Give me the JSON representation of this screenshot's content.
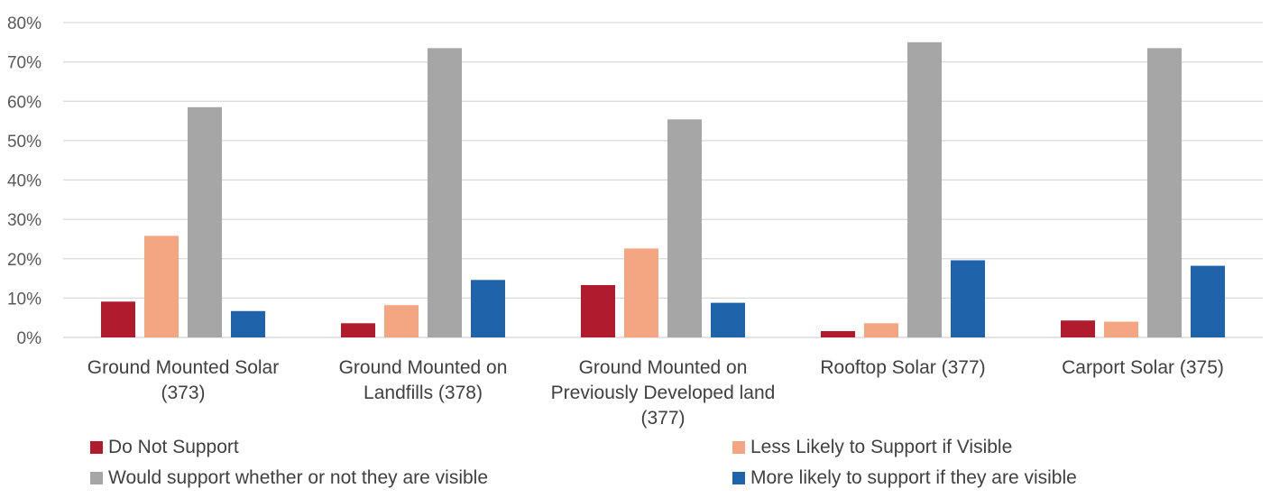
{
  "chart_data": {
    "type": "bar",
    "categories": [
      [
        "Ground Mounted Solar",
        "(373)"
      ],
      [
        "Ground Mounted on",
        "Landfills (378)"
      ],
      [
        "Ground Mounted on",
        "Previously Developed land",
        "(377)"
      ],
      [
        "Rooftop Solar (377)"
      ],
      [
        "Carport Solar (375)"
      ]
    ],
    "series": [
      {
        "name": "Do Not Support",
        "color": "#B01C2E",
        "values": [
          9.1,
          3.6,
          13.3,
          1.6,
          4.3
        ]
      },
      {
        "name": "Less Likely to Support if Visible",
        "color": "#F4A683",
        "values": [
          25.8,
          8.2,
          22.6,
          3.6,
          4.0
        ]
      },
      {
        "name": "Would support whether or not they are visible",
        "color": "#A6A6A6",
        "values": [
          58.5,
          73.5,
          55.4,
          75.0,
          73.5
        ]
      },
      {
        "name": "More likely to support if they are visible",
        "color": "#1F63AB",
        "values": [
          6.7,
          14.6,
          8.8,
          19.6,
          18.2
        ]
      }
    ],
    "yticks": [
      "0%",
      "10%",
      "20%",
      "30%",
      "40%",
      "50%",
      "60%",
      "70%",
      "80%"
    ],
    "ylim": [
      0,
      80
    ],
    "grid": true,
    "legend_position": "bottom"
  }
}
